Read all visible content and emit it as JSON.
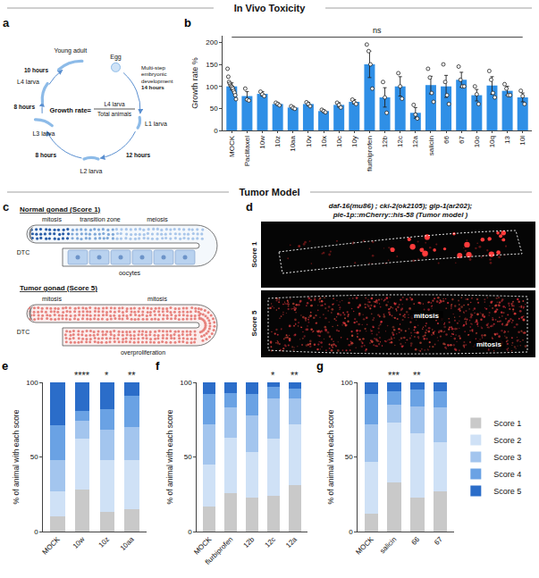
{
  "headers": [
    "In Vivo Toxicity",
    "Tumor Model"
  ],
  "panel_a": {
    "letter": "a",
    "formula": "Growth rate=",
    "numerator": "L4 larva",
    "denominator": "Total animals",
    "stages": [
      "Egg",
      "L1 larva",
      "L2 larva",
      "L3 larva",
      "L4 larva",
      "Young adult"
    ],
    "transitions": [
      {
        "note": "Multi-step embryonic development",
        "time": "14 hours"
      },
      {
        "time": "12 hours"
      },
      {
        "time": "8 hours"
      },
      {
        "time": "8 hours"
      },
      {
        "time": "10 hours"
      }
    ]
  },
  "chart_data": [
    {
      "letter": "b",
      "type": "bar",
      "categories": [
        "MOCK",
        "Paclitaxel",
        "10w",
        "10z",
        "10aa",
        "10v",
        "10x",
        "10c",
        "10y",
        "flurbiprofen",
        "12b",
        "12c",
        "12a",
        "salicin",
        "66",
        "67",
        "10o",
        "10q",
        "13",
        "10l"
      ],
      "values": [
        100,
        78,
        83,
        60,
        52,
        60,
        44,
        58,
        65,
        150,
        75,
        100,
        40,
        103,
        100,
        115,
        80,
        102,
        90,
        75
      ],
      "errors": [
        8,
        10,
        5,
        3,
        3,
        4,
        3,
        5,
        5,
        30,
        22,
        22,
        12,
        20,
        25,
        17,
        13,
        20,
        10,
        10
      ],
      "points": [
        [
          140,
          122,
          110,
          106,
          102,
          100,
          98,
          95,
          90,
          86,
          80,
          71
        ],
        [
          95,
          70,
          68
        ],
        [
          88,
          82,
          78
        ],
        [
          63,
          60,
          57
        ],
        [
          55,
          51,
          49
        ],
        [
          64,
          60,
          55
        ],
        [
          47,
          44,
          41
        ],
        [
          63,
          58,
          52
        ],
        [
          70,
          64,
          60
        ],
        [
          195,
          180,
          150,
          95
        ],
        [
          110,
          75,
          40
        ],
        [
          130,
          100,
          72
        ],
        [
          58,
          36,
          27
        ],
        [
          140,
          120,
          85,
          65
        ],
        [
          150,
          110,
          80,
          60
        ],
        [
          145,
          115,
          100,
          100
        ],
        [
          100,
          82,
          60
        ],
        [
          135,
          115,
          85,
          75
        ],
        [
          105,
          95,
          80,
          80
        ],
        [
          90,
          78,
          60
        ]
      ],
      "ylabel": "Growth rate %",
      "ylim": [
        0,
        215
      ],
      "yticks": [
        0,
        50,
        100,
        150,
        200
      ],
      "color": "#2f8fe6",
      "annotation": "ns"
    },
    {
      "letter": "e",
      "type": "bar",
      "stacked": true,
      "categories": [
        "MOCK",
        "10w",
        "10z",
        "10aa"
      ],
      "series": [
        {
          "name": "Score 1",
          "color": "#c9c9c9",
          "values": [
            10,
            28,
            13,
            15
          ]
        },
        {
          "name": "Score 2",
          "color": "#cfe1f6",
          "values": [
            17,
            34,
            35,
            33
          ]
        },
        {
          "name": "Score 3",
          "color": "#a3c5ee",
          "values": [
            21,
            12,
            20,
            22
          ]
        },
        {
          "name": "Score 4",
          "color": "#6aa2e4",
          "values": [
            23,
            7,
            14,
            21
          ]
        },
        {
          "name": "Score 5",
          "color": "#2b6dc9",
          "values": [
            29,
            19,
            18,
            9
          ]
        }
      ],
      "ylabel": "% of animal with each score",
      "ylim": [
        0,
        100
      ],
      "yticks": [
        0,
        50,
        100
      ],
      "significance": [
        null,
        "****",
        "*",
        "**"
      ]
    },
    {
      "letter": "f",
      "type": "bar",
      "stacked": true,
      "categories": [
        "MOCK",
        "flurbiprofen",
        "12b",
        "12c",
        "12a"
      ],
      "series": [
        {
          "name": "Score 1",
          "color": "#c9c9c9",
          "values": [
            17,
            26,
            23,
            24,
            31
          ]
        },
        {
          "name": "Score 2",
          "color": "#cfe1f6",
          "values": [
            28,
            37,
            30,
            38,
            41
          ]
        },
        {
          "name": "Score 3",
          "color": "#a3c5ee",
          "values": [
            27,
            20,
            25,
            27,
            17
          ]
        },
        {
          "name": "Score 4",
          "color": "#6aa2e4",
          "values": [
            20,
            10,
            14,
            8,
            7
          ]
        },
        {
          "name": "Score 5",
          "color": "#2b6dc9",
          "values": [
            8,
            7,
            8,
            3,
            4
          ]
        }
      ],
      "ylabel": "% of animal with each score",
      "ylim": [
        0,
        100
      ],
      "yticks": [
        0,
        50,
        100
      ],
      "significance": [
        null,
        null,
        null,
        "*",
        "**"
      ]
    },
    {
      "letter": "g",
      "type": "bar",
      "stacked": true,
      "categories": [
        "MOCK",
        "salicin",
        "66",
        "67"
      ],
      "series": [
        {
          "name": "Score 1",
          "color": "#c9c9c9",
          "values": [
            12,
            33,
            23,
            27
          ]
        },
        {
          "name": "Score 2",
          "color": "#cfe1f6",
          "values": [
            35,
            40,
            43,
            33
          ]
        },
        {
          "name": "Score 3",
          "color": "#a3c5ee",
          "values": [
            25,
            12,
            18,
            23
          ]
        },
        {
          "name": "Score 4",
          "color": "#6aa2e4",
          "values": [
            20,
            9,
            11,
            11
          ]
        },
        {
          "name": "Score 5",
          "color": "#2b6dc9",
          "values": [
            8,
            6,
            5,
            6
          ]
        }
      ],
      "ylabel": "% of animal with each score",
      "ylim": [
        0,
        100
      ],
      "yticks": [
        0,
        50,
        100
      ],
      "significance": [
        null,
        "***",
        "**",
        null
      ],
      "legend": "right"
    }
  ],
  "panel_c": {
    "letter": "c",
    "normal": {
      "title": "Normal gonad (Score 1)",
      "labels": [
        "DTC",
        "mitosis",
        "transition zone",
        "meiosis",
        "oocytes"
      ]
    },
    "tumor": {
      "title": "Tumor gonad (Score 5)",
      "labels": [
        "DTC",
        "mitosis",
        "mitosis",
        "overproliferation"
      ]
    }
  },
  "panel_d": {
    "letter": "d",
    "title_lines": [
      "daf-16(mu86) ; cki-2(ok2105); glp-1(ar202);",
      "pie-1p::mCherry::his-58 (Tumor model )"
    ],
    "images": [
      {
        "label": "Score 1"
      },
      {
        "label": "Score 5",
        "annotations": [
          "mitosis",
          "mitosis"
        ]
      }
    ]
  }
}
